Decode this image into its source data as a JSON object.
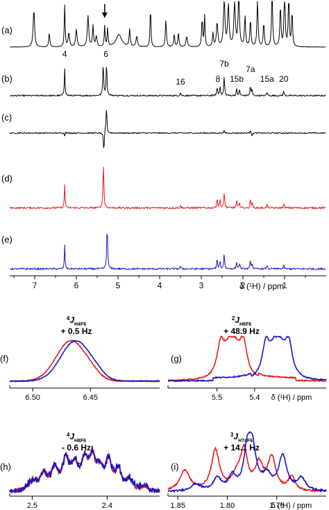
{
  "colors": {
    "black": "#000000",
    "red": "#e8161b",
    "blue": "#1515c8"
  },
  "chart_data": [
    {
      "type": "line",
      "panel": "main",
      "xlabel": "δ (¹H) / ppm",
      "xlim": [
        7.6,
        0.0
      ],
      "x_direction": "reversed",
      "xticks": [
        7,
        6,
        5,
        4,
        3,
        2,
        1
      ],
      "arrow_ppm": 5.32,
      "traces": [
        {
          "label": "(a)",
          "color": "black",
          "kind": "1D spectrum",
          "annotations": []
        },
        {
          "label": "(b)",
          "color": "black",
          "kind": "selective",
          "annotations": [
            {
              "text": "4",
              "ppm": 6.28
            },
            {
              "text": "6",
              "ppm": 5.29
            },
            {
              "text": "16",
              "ppm": 3.5
            },
            {
              "text": "7b",
              "ppm": 2.45
            },
            {
              "text": "8",
              "ppm": 2.6
            },
            {
              "text": "15b",
              "ppm": 2.15
            },
            {
              "text": "7a",
              "ppm": 1.82
            },
            {
              "text": "15a",
              "ppm": 1.42
            },
            {
              "text": "20",
              "ppm": 1.02
            }
          ]
        },
        {
          "label": "(c)",
          "color": "black",
          "kind": "difference",
          "annotations": []
        },
        {
          "label": "(d)",
          "color": "red",
          "kind": "selective",
          "annotations": []
        },
        {
          "label": "(e)",
          "color": "blue",
          "kind": "selective",
          "annotations": []
        }
      ]
    },
    {
      "type": "line",
      "panel": "(f)",
      "title_sup": "4",
      "title_J": "J",
      "title_sub": "H4F6",
      "coupling": "+ 0.5 Hz",
      "xlim": [
        6.52,
        6.39
      ],
      "xticks": [
        "6.50",
        "6.45"
      ],
      "xlabel": "",
      "series": [
        {
          "name": "",
          "color": "red",
          "center": 6.465,
          "shift": 0.002
        },
        {
          "name": "",
          "color": "blue",
          "center": 6.465,
          "shift": -0.002
        }
      ]
    },
    {
      "type": "line",
      "panel": "(g)",
      "title_sup": "2",
      "title_J": "J",
      "title_sub": "H6F6",
      "coupling": "+ 48.9 Hz",
      "xlim": [
        5.63,
        5.21
      ],
      "xticks": [
        "5.5",
        "5.4"
      ],
      "xlabel": "δ (¹H) / ppm",
      "series": [
        {
          "name": "",
          "color": "red",
          "center": 5.46
        },
        {
          "name": "",
          "color": "blue",
          "center": 5.34
        }
      ]
    },
    {
      "type": "line",
      "panel": "(h)",
      "title_sup": "4",
      "title_J": "J",
      "title_sub": "H8F6",
      "coupling": "- 0.6 Hz",
      "xlim": [
        2.53,
        2.33
      ],
      "xticks": [
        "2.5",
        "2.4"
      ],
      "xlabel": "",
      "series": [
        {
          "name": "",
          "color": "red"
        },
        {
          "name": "",
          "color": "blue"
        }
      ]
    },
    {
      "type": "line",
      "panel": "(i)",
      "title_sup": "3",
      "title_J": "J",
      "title_sub": "H7aF6",
      "coupling": "+ 14.1 Hz",
      "xlim": [
        1.86,
        1.7
      ],
      "xticks": [
        "1.85",
        "1.80",
        "1.75"
      ],
      "xlabel": "δ (¹H) / ppm",
      "series": [
        {
          "name": "",
          "color": "red"
        },
        {
          "name": "",
          "color": "blue"
        }
      ]
    }
  ]
}
